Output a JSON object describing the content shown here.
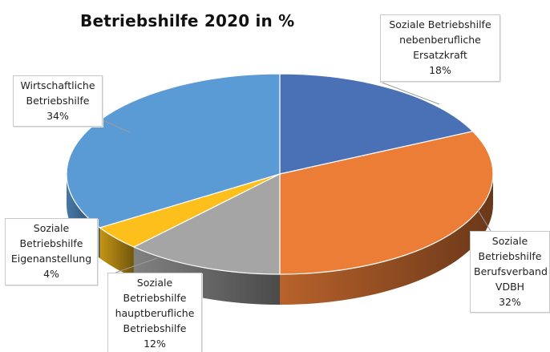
{
  "chart_data": {
    "type": "pie",
    "title": "Betriebshilfe 2020 in %",
    "slices": [
      {
        "label_lines": [
          "Soziale Betriebshilfe",
          "nebenberufliche",
          "Ersatzkraft"
        ],
        "value": 18,
        "value_label": "18%",
        "color": "#4a70b5"
      },
      {
        "label_lines": [
          "Soziale",
          "Betriebshilfe",
          "Berufsverband",
          "VDBH"
        ],
        "value": 32,
        "value_label": "32%",
        "color": "#ec7d37"
      },
      {
        "label_lines": [
          "Soziale",
          "Betriebshilfe",
          "hauptberufliche",
          "Betriebshilfe"
        ],
        "value": 12,
        "value_label": "12%",
        "color": "#a5a5a5"
      },
      {
        "label_lines": [
          "Soziale",
          "Betriebshilfe",
          "Eigenanstellung"
        ],
        "value": 4,
        "value_label": "4%",
        "color": "#fcbf1b"
      },
      {
        "label_lines": [
          "Wirtschaftliche",
          "Betriebshilfe"
        ],
        "value": 34,
        "value_label": "34%",
        "color": "#5b9bd5"
      }
    ],
    "style": "3d-pie",
    "legend": "none"
  }
}
